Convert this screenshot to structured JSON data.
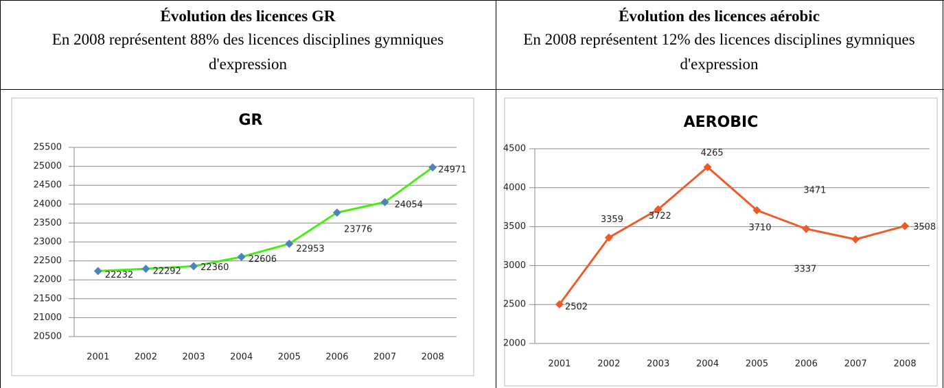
{
  "table": {
    "header": [
      {
        "title": "Évolution des licences GR",
        "subtitle": "En 2008 représentent 88% des licences disciplines gymniques d'expression"
      },
      {
        "title": "Évolution des licences aérobic",
        "subtitle": "En 2008 représentent 12% des licences disciplines gymniques d'expression"
      }
    ]
  },
  "chart_data": [
    {
      "type": "line",
      "title": "GR",
      "categories": [
        "2001",
        "2002",
        "2003",
        "2004",
        "2005",
        "2006",
        "2007",
        "2008"
      ],
      "values": [
        22232,
        22292,
        22360,
        22606,
        22953,
        23776,
        24054,
        24971
      ],
      "color": "#44ee11",
      "marker_color": "#4f81bd",
      "ylim": [
        20500,
        25500
      ],
      "yticks": [
        20500,
        21000,
        21500,
        22000,
        22500,
        23000,
        23500,
        24000,
        24500,
        25000,
        25500
      ],
      "grid": true
    },
    {
      "type": "line",
      "title": "AEROBIC",
      "categories": [
        "2001",
        "2002",
        "2003",
        "2004",
        "2005",
        "2006",
        "2007",
        "2008"
      ],
      "values": [
        2502,
        3359,
        3722,
        4265,
        3710,
        3471,
        3337,
        3508
      ],
      "color": "#f05a28",
      "marker_color": "#f05a28",
      "ylim": [
        2000,
        4500
      ],
      "yticks": [
        2000,
        2500,
        3000,
        3500,
        4000,
        4500
      ],
      "grid": true
    }
  ]
}
